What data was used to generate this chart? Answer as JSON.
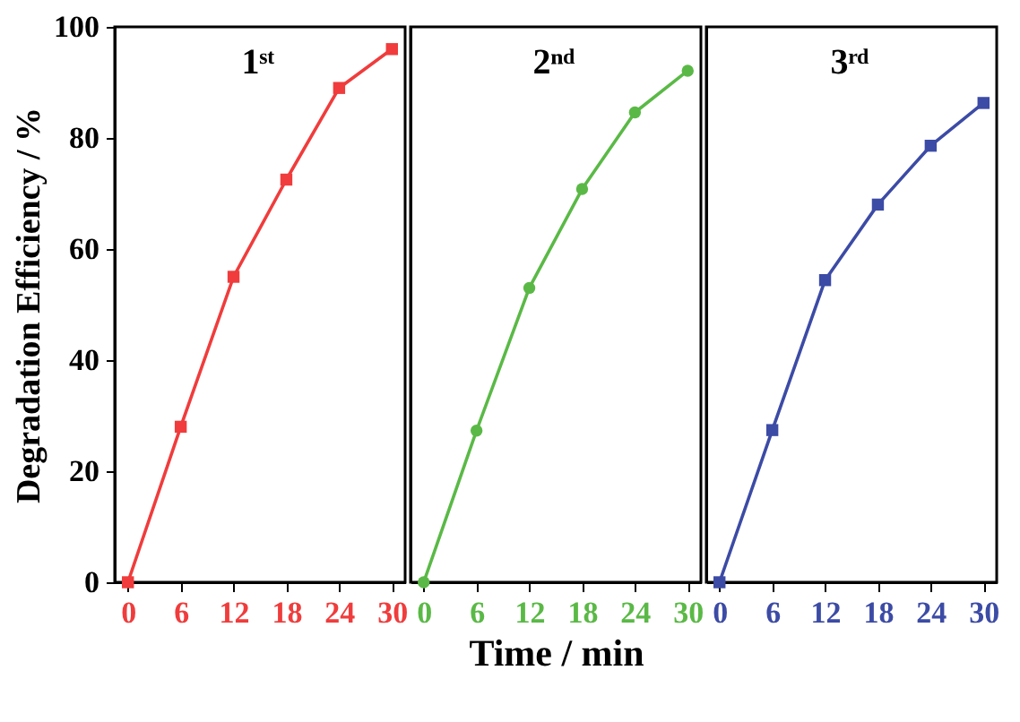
{
  "chart_data": [
    {
      "type": "line",
      "ylabel": "Degradation Efficiency / %",
      "annotations": [
        "1ˢᵗ"
      ],
      "x": [
        0,
        6,
        12,
        18,
        24,
        30
      ],
      "marker": "square",
      "xlim": [
        -1.5,
        31.5
      ],
      "xticks": [
        0,
        6,
        12,
        18,
        24,
        30
      ],
      "ylim": [
        0,
        100
      ],
      "yticks": [
        0,
        20,
        40,
        60,
        80,
        100
      ],
      "series": [
        {
          "color": "#f03c3c",
          "values": [
            0,
            28,
            55,
            72.5,
            89,
            96
          ]
        }
      ]
    },
    {
      "type": "line",
      "xlabel": "Time / min",
      "annotations": [
        "2ⁿᵈ"
      ],
      "x": [
        0,
        6,
        12,
        18,
        24,
        30
      ],
      "marker": "circle",
      "xlim": [
        -1.5,
        31.5
      ],
      "xticks": [
        0,
        6,
        12,
        18,
        24,
        30
      ],
      "ylim": [
        0,
        100
      ],
      "tick_labels": "x",
      "series": [
        {
          "color": "#5ab946",
          "values": [
            0,
            27.3,
            53,
            70.8,
            84.6,
            92.1
          ]
        }
      ]
    },
    {
      "type": "line",
      "annotations": [
        "3ʳᵈ"
      ],
      "x": [
        0,
        6,
        12,
        18,
        24,
        30
      ],
      "marker": "square",
      "xlim": [
        -1.5,
        31.5
      ],
      "xticks": [
        0,
        6,
        12,
        18,
        24,
        30
      ],
      "ylim": [
        0,
        100
      ],
      "tick_labels": "x",
      "series": [
        {
          "color": "#3c4ba5",
          "values": [
            0,
            27.4,
            54.4,
            68,
            78.6,
            86.3
          ]
        }
      ]
    }
  ]
}
